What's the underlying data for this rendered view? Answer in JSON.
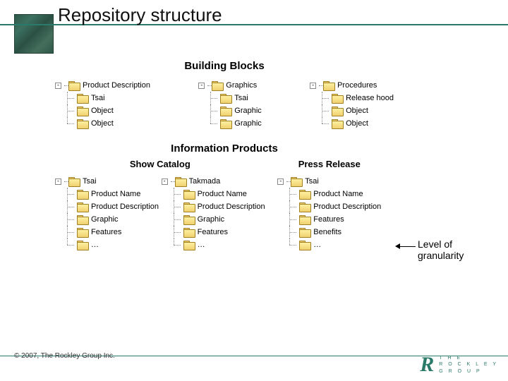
{
  "title": "Repository structure",
  "sections": {
    "building_blocks": {
      "heading": "Building Blocks",
      "trees": [
        {
          "root": "Product Description",
          "children": [
            "Tsai",
            "Object",
            "Object"
          ]
        },
        {
          "root": "Graphics",
          "children": [
            "Tsai",
            "Graphic",
            "Graphic"
          ]
        },
        {
          "root": "Procedures",
          "children": [
            "Release hood",
            "Object",
            "Object"
          ]
        }
      ]
    },
    "info_products": {
      "heading": "Information Products",
      "columns": [
        {
          "heading": "Show Catalog",
          "trees": [
            {
              "root": "Tsai",
              "children": [
                "Product Name",
                "Product Description",
                "Graphic",
                "Features",
                "…"
              ]
            },
            {
              "root": "Takmada",
              "children": [
                "Product Name",
                "Product Description",
                "Graphic",
                "Features",
                "…"
              ]
            }
          ]
        },
        {
          "heading": "Press Release",
          "trees": [
            {
              "root": "Tsai",
              "children": [
                "Product Name",
                "Product Description",
                "Features",
                "Benefits",
                "…"
              ]
            }
          ]
        }
      ]
    }
  },
  "annotation": {
    "line1": "Level of",
    "line2": "granularity"
  },
  "footer": "© 2007, The Rockley Group Inc.",
  "logo": {
    "line1": "T H E",
    "line2": "R O C K L E Y",
    "line3": "G R O U P"
  },
  "colors": {
    "accent": "#2a7a6a",
    "folder_fill": "#f0d070",
    "folder_border": "#a08020",
    "text": "#000000",
    "bg": "#ffffff"
  }
}
